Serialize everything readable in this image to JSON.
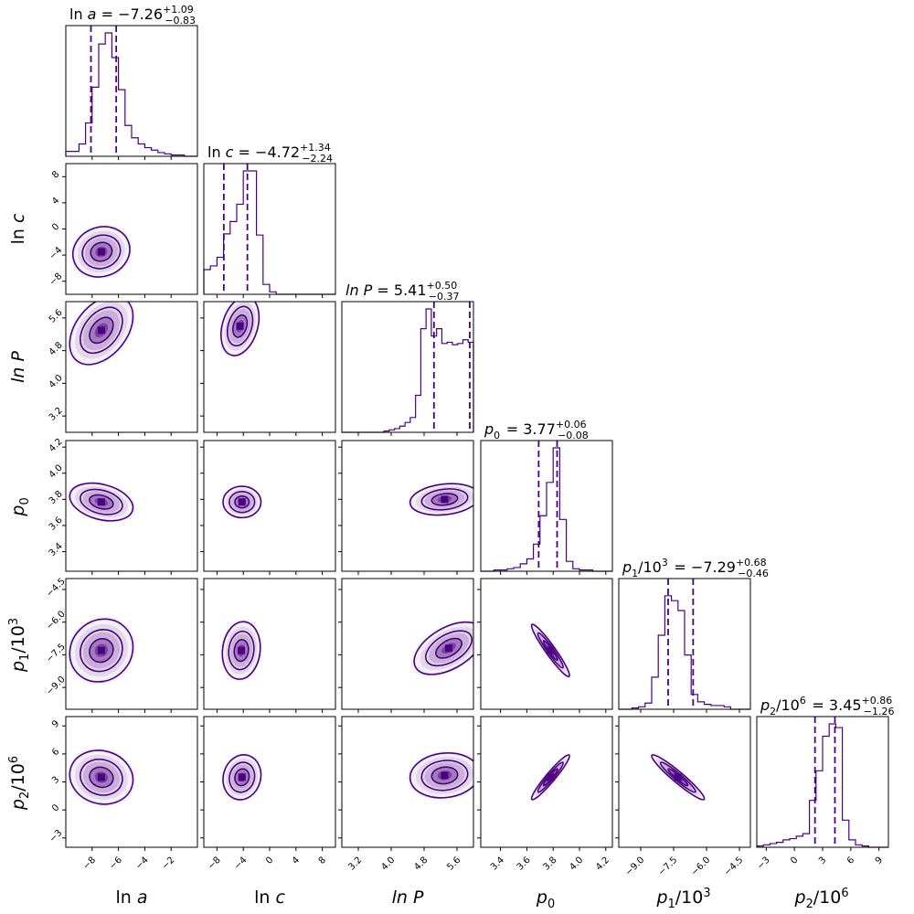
{
  "chart_data": {
    "type": "corner",
    "color": "#4B0082",
    "parameters": [
      {
        "key": "lna",
        "label": "ln a",
        "range": [
          -10,
          0
        ],
        "ticks": [
          -8,
          -6,
          -4,
          -2
        ],
        "tick_labels": [
          "−8",
          "−6",
          "−4",
          "−2"
        ],
        "median": -7.26,
        "plus": 1.09,
        "minus": 0.83,
        "title": {
          "name": "ln a",
          "value": "−7.26",
          "plus": "+1.09",
          "minus": "−0.83"
        },
        "hist": [
          0.04,
          0.04,
          0.1,
          0.27,
          0.56,
          0.91,
          1.0,
          0.8,
          0.54,
          0.25,
          0.15,
          0.1,
          0.07,
          0.05,
          0.03,
          0.02,
          0.01,
          0.01,
          0.0,
          0.0
        ]
      },
      {
        "key": "lnc",
        "label": "ln c",
        "range": [
          -10,
          10
        ],
        "ticks": [
          -8,
          -4,
          0,
          4,
          8
        ],
        "tick_labels": [
          "−8",
          "−4",
          "0",
          "4",
          "8"
        ],
        "median": -4.72,
        "plus": 1.34,
        "minus": 2.24,
        "title": {
          "name": "ln c",
          "value": "−4.72",
          "plus": "+1.34",
          "minus": "−2.24"
        },
        "hist": [
          0.2,
          0.23,
          0.3,
          0.49,
          0.59,
          0.73,
          1.0,
          1.0,
          0.48,
          0.08,
          0.02,
          0.0,
          0.0,
          0.0,
          0.0,
          0.0,
          0.0,
          0.0,
          0.0,
          0.0
        ]
      },
      {
        "key": "lnP",
        "label": "ln P",
        "range": [
          2.8,
          6.0
        ],
        "ticks": [
          3.2,
          4.0,
          4.8,
          5.6
        ],
        "tick_labels": [
          "3.2",
          "4.0",
          "4.8",
          "5.6"
        ],
        "median": 5.41,
        "plus": 0.5,
        "minus": 0.37,
        "title": {
          "name": "ln P",
          "value": "5.41",
          "plus": "+0.50",
          "minus": "−0.37"
        },
        "hist": [
          0.0,
          0.0,
          0.0,
          0.0,
          0.0,
          0.0,
          0.0,
          0.0,
          0.01,
          0.02,
          0.03,
          0.05,
          0.08,
          0.12,
          0.3,
          0.84,
          1.0,
          0.78,
          0.84,
          0.72,
          0.73,
          0.71,
          0.72,
          0.75,
          0.73
        ]
      },
      {
        "key": "p0",
        "label": "p0",
        "range": [
          3.25,
          4.25
        ],
        "ticks": [
          3.4,
          3.6,
          3.8,
          4.0,
          4.2
        ],
        "tick_labels": [
          "3.4",
          "3.6",
          "3.8",
          "4.0",
          "4.2"
        ],
        "median": 3.77,
        "plus": 0.06,
        "minus": 0.08,
        "title": {
          "name": "p0",
          "value": "3.77",
          "plus": "+0.06",
          "minus": "−0.08"
        },
        "hist": [
          0.0,
          0.0,
          0.01,
          0.01,
          0.02,
          0.03,
          0.06,
          0.1,
          0.22,
          0.45,
          0.72,
          1.0,
          0.42,
          0.08,
          0.02,
          0.01,
          0.01,
          0.0,
          0.0,
          0.0
        ]
      },
      {
        "key": "p1",
        "label": "p1/10^3",
        "range": [
          -10.0,
          -4.0
        ],
        "ticks": [
          -9.0,
          -7.5,
          -6.0,
          -4.5
        ],
        "tick_labels": [
          "−9.0",
          "−7.5",
          "−6.0",
          "−4.5"
        ],
        "median": -7.29,
        "plus": 0.68,
        "minus": 0.46,
        "title": {
          "name": "p1/10^3",
          "value": "−7.29",
          "plus": "+0.68",
          "minus": "−0.46"
        },
        "hist": [
          0.0,
          0.0,
          0.01,
          0.02,
          0.05,
          0.26,
          0.6,
          0.92,
          0.88,
          0.8,
          0.44,
          0.12,
          0.06,
          0.04,
          0.03,
          0.03,
          0.02,
          0.0,
          0.0,
          0.0
        ]
      },
      {
        "key": "p2",
        "label": "p2/10^6",
        "range": [
          -4,
          10
        ],
        "ticks": [
          -3,
          0,
          3,
          6,
          9
        ],
        "tick_labels": [
          "−3",
          "0",
          "3",
          "6",
          "9"
        ],
        "median": 3.45,
        "plus": 0.86,
        "minus": 1.26,
        "title": {
          "name": "p2/10^6",
          "value": "3.45",
          "plus": "+0.86",
          "minus": "−1.26"
        },
        "hist": [
          0.01,
          0.02,
          0.03,
          0.04,
          0.06,
          0.07,
          0.09,
          0.11,
          0.38,
          0.62,
          0.9,
          1.0,
          0.97,
          0.22,
          0.06,
          0.02,
          0.01,
          0.0,
          0.0,
          0.0
        ]
      }
    ],
    "correlations": [
      {
        "row": 1,
        "col": 0,
        "mean": [
          -7.3,
          -3.5
        ],
        "sd": [
          0.9,
          1.6
        ],
        "rho": 0.1
      },
      {
        "row": 2,
        "col": 0,
        "mean": [
          -7.3,
          5.3
        ],
        "sd": [
          1.0,
          0.35
        ],
        "rho": 0.4
      },
      {
        "row": 2,
        "col": 1,
        "mean": [
          -4.5,
          5.4
        ],
        "sd": [
          1.2,
          0.3
        ],
        "rho": 0.3
      },
      {
        "row": 3,
        "col": 0,
        "mean": [
          -7.3,
          3.78
        ],
        "sd": [
          1.0,
          0.06
        ],
        "rho": -0.3
      },
      {
        "row": 3,
        "col": 1,
        "mean": [
          -4.2,
          3.78
        ],
        "sd": [
          1.2,
          0.05
        ],
        "rho": 0.0
      },
      {
        "row": 3,
        "col": 2,
        "mean": [
          5.3,
          3.8
        ],
        "sd": [
          0.35,
          0.05
        ],
        "rho": 0.2
      },
      {
        "row": 4,
        "col": 0,
        "mean": [
          -7.3,
          -7.3
        ],
        "sd": [
          1.0,
          0.6
        ],
        "rho": 0.1
      },
      {
        "row": 4,
        "col": 1,
        "mean": [
          -4.3,
          -7.3
        ],
        "sd": [
          1.2,
          0.55
        ],
        "rho": 0.1
      },
      {
        "row": 4,
        "col": 2,
        "mean": [
          5.4,
          -7.2
        ],
        "sd": [
          0.35,
          0.5
        ],
        "rho": 0.5
      },
      {
        "row": 4,
        "col": 3,
        "mean": [
          3.78,
          -7.3
        ],
        "sd": [
          0.06,
          0.5
        ],
        "rho": -0.95
      },
      {
        "row": 5,
        "col": 0,
        "mean": [
          -7.3,
          3.5
        ],
        "sd": [
          1.0,
          1.2
        ],
        "rho": -0.1
      },
      {
        "row": 5,
        "col": 1,
        "mean": [
          -4.2,
          3.5
        ],
        "sd": [
          1.2,
          1.0
        ],
        "rho": 0.1
      },
      {
        "row": 5,
        "col": 2,
        "mean": [
          5.3,
          3.7
        ],
        "sd": [
          0.35,
          1.0
        ],
        "rho": 0.1
      },
      {
        "row": 5,
        "col": 3,
        "mean": [
          3.78,
          3.5
        ],
        "sd": [
          0.06,
          1.0
        ],
        "rho": 0.95
      },
      {
        "row": 5,
        "col": 4,
        "mean": [
          -7.3,
          3.5
        ],
        "sd": [
          0.5,
          1.0
        ],
        "rho": -0.95
      }
    ]
  }
}
